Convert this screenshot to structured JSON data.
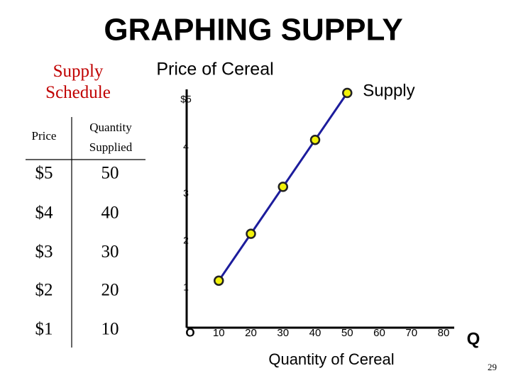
{
  "title": "GRAPHING SUPPLY",
  "table": {
    "caption": "Supply Schedule",
    "header": [
      "Price",
      "Quantity Supplied"
    ],
    "rows": [
      [
        "$5",
        "50"
      ],
      [
        "$4",
        "40"
      ],
      [
        "$3",
        "30"
      ],
      [
        "$2",
        "20"
      ],
      [
        "$1",
        "10"
      ]
    ]
  },
  "page_number": "29",
  "chart_data": {
    "type": "line",
    "y_label": "Price of Cereal",
    "x_label": "Quantity of Cereal",
    "x_axis_symbol": "Q",
    "x": [
      10,
      20,
      30,
      40,
      50
    ],
    "series": [
      {
        "name": "Supply",
        "color": "#1c1c9c",
        "marker_color": "#f2f20a",
        "values": [
          1,
          2,
          3,
          4,
          5
        ]
      }
    ],
    "xlim": [
      0,
      80
    ],
    "ylim": [
      0,
      5
    ],
    "xticks": [
      {
        "value": 0,
        "label": "O"
      },
      10,
      20,
      30,
      40,
      50,
      60,
      70,
      80
    ],
    "yticks": [
      1,
      2,
      3,
      4,
      {
        "value": 5,
        "label": "$5"
      }
    ]
  }
}
